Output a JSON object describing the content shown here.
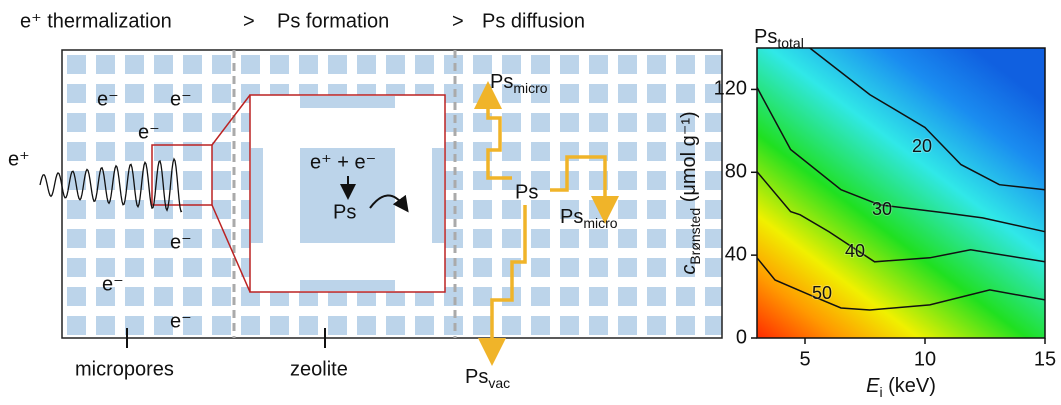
{
  "diagram": {
    "steps": [
      "e⁺ thermalization",
      "Ps formation",
      "Ps diffusion"
    ],
    "separator": ">",
    "electrons": [
      "e⁻",
      "e⁻",
      "e⁻",
      "e⁻",
      "e⁻",
      "e⁻"
    ],
    "positron": "e⁺",
    "reaction": "e⁺ + e⁻",
    "product": "Ps",
    "diffusing": "Ps",
    "ps_labels": [
      {
        "base": "Ps",
        "sub": "micro"
      },
      {
        "base": "Ps",
        "sub": "micro"
      },
      {
        "base": "Ps",
        "sub": "vac"
      }
    ],
    "regions": [
      "micropores",
      "zeolite"
    ]
  },
  "chart_data": {
    "type": "contour",
    "title": {
      "base": "Ps",
      "sub": "total"
    },
    "xlabel": {
      "base": "E",
      "sub": "i",
      "text": " (keV)"
    },
    "ylabel": {
      "base": "c",
      "sub": "Brønsted",
      "text": " (μmol g⁻¹)"
    },
    "xlim": [
      3,
      15
    ],
    "ylim": [
      0,
      140
    ],
    "xticks": [
      5,
      10,
      15
    ],
    "yticks": [
      0,
      40,
      80,
      120
    ],
    "contours": [
      {
        "level": 20,
        "x": [
          5.2,
          7.7,
          10,
          11.5,
          13.1,
          15
        ],
        "y": [
          140,
          117.5,
          101.6,
          83.7,
          74,
          71.6
        ]
      },
      {
        "level": 30,
        "x": [
          3,
          4.4,
          6.5,
          8.1,
          10.8,
          12.4,
          15
        ],
        "y": [
          121,
          91,
          71.6,
          64.3,
          60.5,
          58,
          51.3
        ]
      },
      {
        "level": 40,
        "x": [
          3,
          4.4,
          4.8,
          6,
          7.9,
          10.2,
          11.9,
          15
        ],
        "y": [
          80.3,
          61,
          59.5,
          51.3,
          36.8,
          38.7,
          42.6,
          36.8
        ]
      },
      {
        "level": 50,
        "x": [
          3,
          3.75,
          5.2,
          6.5,
          7.7,
          10.2,
          12.7,
          15
        ],
        "y": [
          38.7,
          28,
          20.8,
          14.5,
          13.5,
          16,
          23.2,
          18.4
        ]
      }
    ]
  }
}
